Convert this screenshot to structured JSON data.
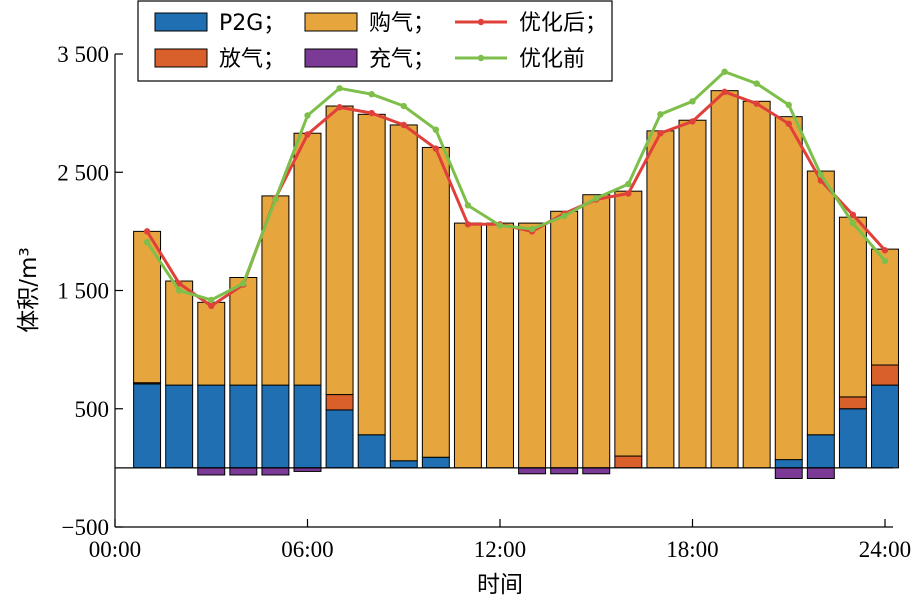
{
  "chart_data": {
    "type": "bar",
    "xlabel": "时间",
    "ylabel": "体积/m³",
    "ylim": [
      -500,
      3500
    ],
    "xlim": [
      0,
      24
    ],
    "xticks": [
      0,
      6,
      12,
      18,
      24
    ],
    "xtick_labels": [
      "00:00",
      "06:00",
      "12:00",
      "18:00",
      "24:00"
    ],
    "yticks": [
      -500,
      500,
      1500,
      2500,
      3500
    ],
    "ytick_labels": [
      "−500",
      "500",
      "1 500",
      "2 500",
      "3 500"
    ],
    "grid": false,
    "legend_position": "top-left",
    "categories": [
      1,
      2,
      3,
      4,
      5,
      6,
      7,
      8,
      9,
      10,
      11,
      12,
      13,
      14,
      15,
      16,
      17,
      18,
      19,
      20,
      21,
      22,
      23,
      24
    ],
    "stacked_series": [
      {
        "name": "P2G；",
        "color": "#1f6fb2",
        "kind": "bar",
        "values": [
          710,
          700,
          700,
          700,
          700,
          700,
          490,
          280,
          60,
          90,
          0,
          0,
          0,
          0,
          0,
          0,
          0,
          0,
          0,
          0,
          70,
          280,
          500,
          700
        ]
      },
      {
        "name": "放气；",
        "color": "#d95f2b",
        "kind": "bar",
        "values": [
          10,
          0,
          0,
          0,
          0,
          0,
          130,
          0,
          0,
          0,
          0,
          0,
          0,
          0,
          0,
          100,
          0,
          0,
          0,
          0,
          0,
          0,
          100,
          170
        ]
      },
      {
        "name": "购气；",
        "color": "#e6a63d",
        "kind": "bar",
        "values": [
          1280,
          880,
          700,
          910,
          1600,
          2130,
          2440,
          2710,
          2840,
          2620,
          2070,
          2070,
          2070,
          2170,
          2310,
          2240,
          2850,
          2940,
          3190,
          3100,
          2900,
          2230,
          1520,
          980
        ]
      },
      {
        "name": "充气；",
        "color": "#7b3a96",
        "kind": "bar",
        "values": [
          0,
          0,
          -60,
          -60,
          -60,
          -30,
          0,
          0,
          0,
          0,
          0,
          0,
          -50,
          -50,
          -50,
          0,
          0,
          0,
          0,
          0,
          -90,
          -90,
          0,
          0
        ]
      }
    ],
    "line_series": [
      {
        "name": "优化后；",
        "color": "#e0403a",
        "values": [
          2000,
          1560,
          1370,
          1550,
          2280,
          2820,
          3050,
          3000,
          2900,
          2700,
          2060,
          2060,
          2000,
          2150,
          2270,
          2320,
          2830,
          2930,
          3180,
          3080,
          2910,
          2430,
          2140,
          1840
        ]
      },
      {
        "name": "优化前",
        "color": "#7dbf4a",
        "values": [
          1910,
          1500,
          1420,
          1560,
          2270,
          2980,
          3210,
          3160,
          3060,
          2860,
          2220,
          2050,
          2020,
          2130,
          2280,
          2400,
          2990,
          3100,
          3350,
          3250,
          3070,
          2480,
          2070,
          1750
        ]
      }
    ],
    "legend": {
      "entries": [
        {
          "series": "P2G；",
          "kind": "bar"
        },
        {
          "series": "购气；",
          "kind": "bar"
        },
        {
          "series": "优化后；",
          "kind": "line"
        },
        {
          "series": "放气；",
          "kind": "bar"
        },
        {
          "series": "充气；",
          "kind": "bar"
        },
        {
          "series": "优化前",
          "kind": "line"
        }
      ]
    }
  }
}
